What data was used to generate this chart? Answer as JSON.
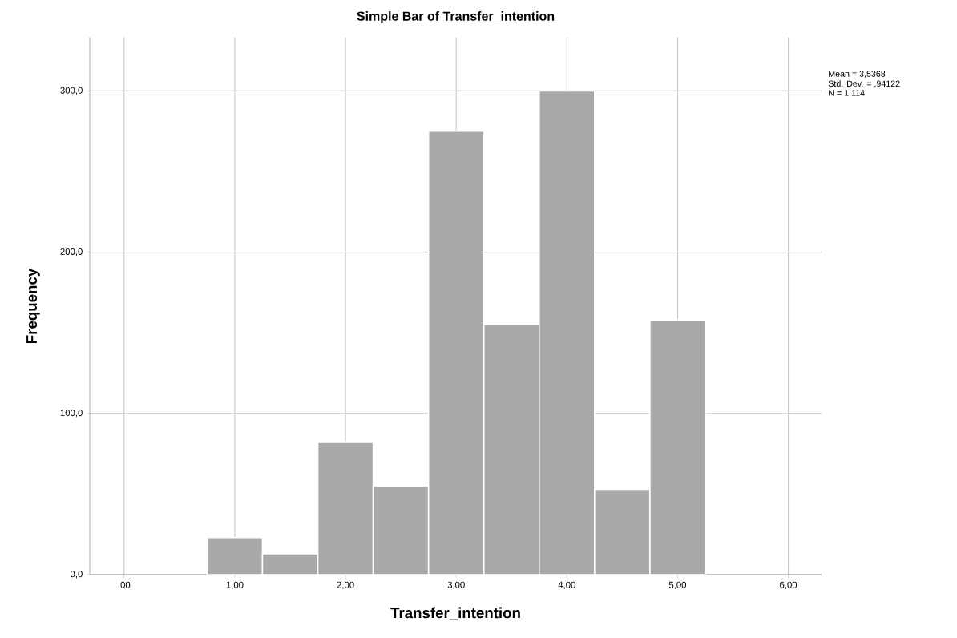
{
  "chart_data": {
    "type": "histogram",
    "title": "Simple Bar of Transfer_intention",
    "xlabel": "Transfer_intention",
    "ylabel": "Frequency",
    "bins": [
      0.75,
      1.25,
      1.75,
      2.25,
      2.75,
      3.25,
      3.75,
      4.25,
      4.75,
      5.25
    ],
    "values": [
      23,
      13,
      82,
      55,
      275,
      155,
      300,
      53,
      158
    ],
    "color": "#a9a9a9",
    "xlim": [
      -0.31,
      6.3
    ],
    "ylim": [
      0,
      333
    ],
    "xticks": [
      {
        "value": 0,
        "label": ",00"
      },
      {
        "value": 1,
        "label": "1,00"
      },
      {
        "value": 2,
        "label": "2,00"
      },
      {
        "value": 3,
        "label": "3,00"
      },
      {
        "value": 4,
        "label": "4,00"
      },
      {
        "value": 5,
        "label": "5,00"
      },
      {
        "value": 6,
        "label": "6,00"
      }
    ],
    "yticks": [
      {
        "value": 0,
        "label": "0,0"
      },
      {
        "value": 100,
        "label": "100,0"
      },
      {
        "value": 200,
        "label": "200,0"
      },
      {
        "value": 300,
        "label": "300,0"
      }
    ],
    "grid": true,
    "annotations": [
      "Mean = 3,5368",
      "Std. Dev. = ,94122",
      "N = 1.114"
    ]
  }
}
